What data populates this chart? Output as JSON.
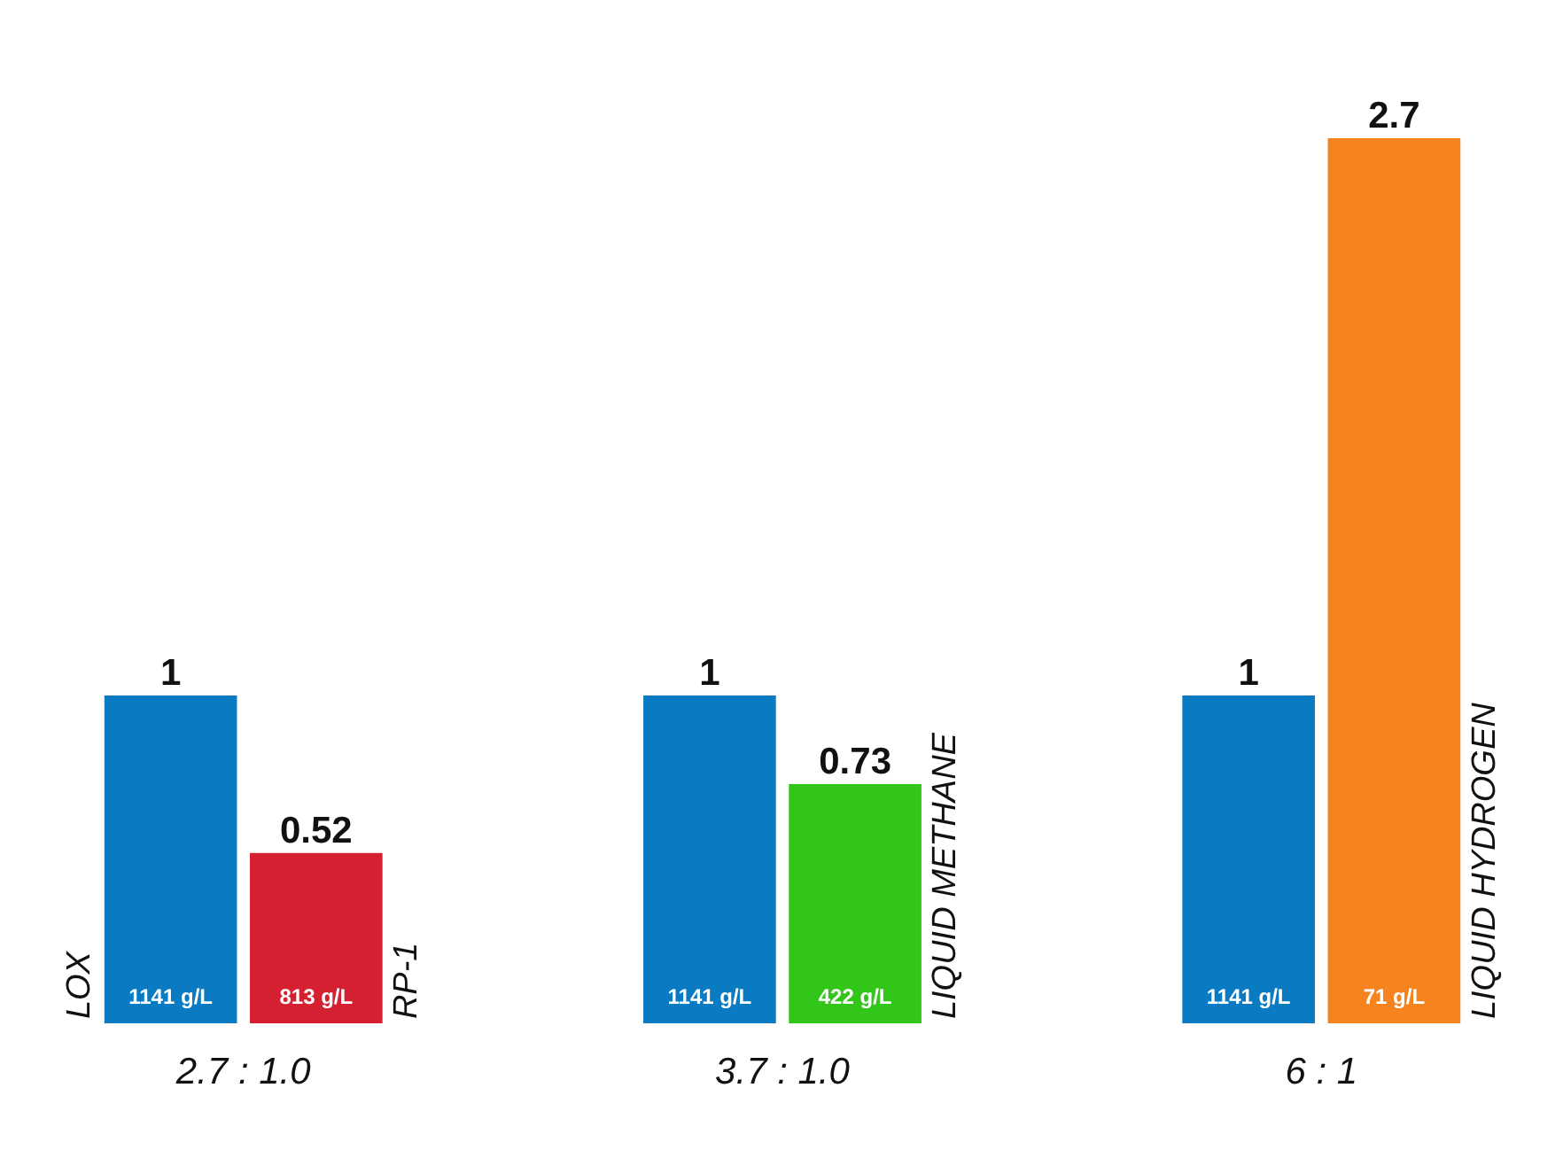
{
  "chart_data": {
    "type": "bar",
    "categories": [
      "2.7 : 1.0",
      "3.7 : 1.0",
      "6 : 1"
    ],
    "series": [
      {
        "name": "LOX",
        "color": "#0a7bc2",
        "values": [
          1,
          1,
          1
        ]
      },
      {
        "name": "RP-1",
        "color": "#d42030",
        "values": [
          0.52,
          null,
          null
        ]
      },
      {
        "name": "LIQUID METHANE",
        "color": "#33c61a",
        "values": [
          null,
          0.73,
          null
        ]
      },
      {
        "name": "LIQUID HYDROGEN",
        "color": "#f5841f",
        "values": [
          null,
          null,
          2.7
        ]
      }
    ],
    "data_labels": true,
    "annotations": [
      "1141 g/L",
      "813 g/L",
      "1141 g/L",
      "422 g/L",
      "1141 g/L",
      "71 g/L"
    ],
    "grid": false
  }
}
